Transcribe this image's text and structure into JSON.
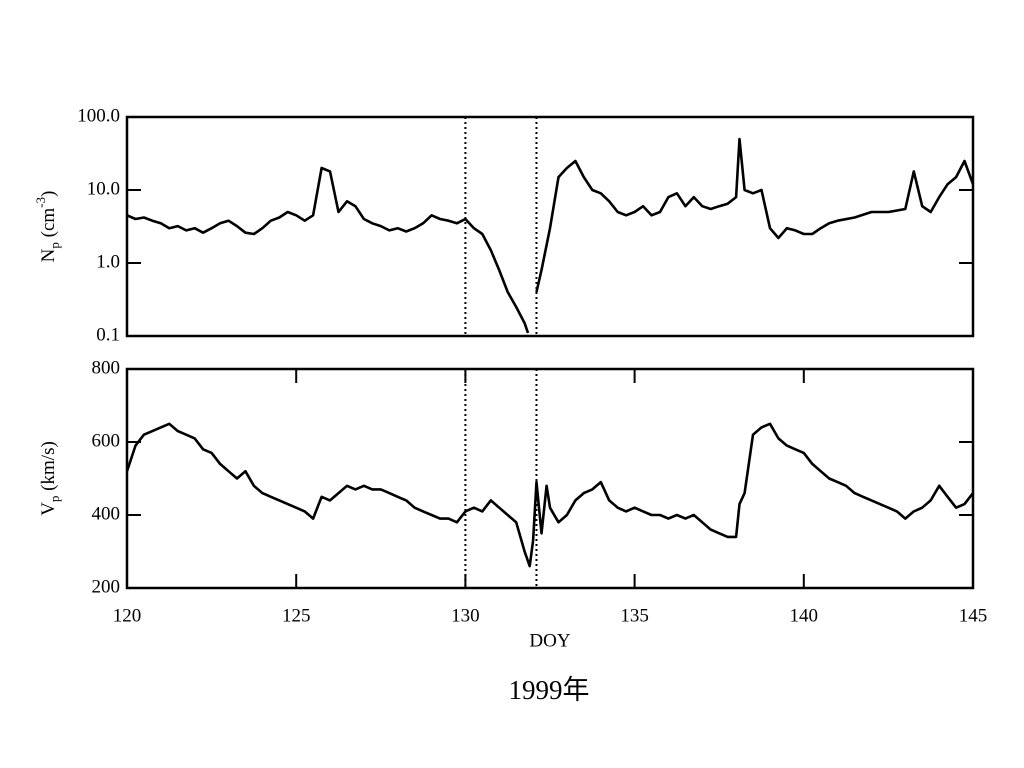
{
  "chart_data": [
    {
      "type": "line",
      "log_y": true,
      "color": "#000000",
      "ylabel": [
        {
          "text": "N"
        },
        {
          "text": "p",
          "script": "sub"
        },
        {
          "text": " (cm"
        },
        {
          "text": "-3",
          "script": "super"
        },
        {
          "text": ")"
        }
      ],
      "xlim": [
        120,
        145
      ],
      "ylim": [
        0.1,
        100
      ],
      "yticks": [
        0.1,
        {
          "value": 1,
          "label": "1.0"
        },
        {
          "value": 10,
          "label": "10.0"
        },
        {
          "value": 100,
          "label": "100.0"
        }
      ],
      "vlines": [
        130,
        132.1
      ],
      "x": [
        120,
        120.25,
        120.5,
        120.75,
        121,
        121.25,
        121.5,
        121.75,
        122,
        122.25,
        122.5,
        122.75,
        123,
        123.25,
        123.5,
        123.75,
        124,
        124.25,
        124.5,
        124.75,
        125,
        125.25,
        125.5,
        125.75,
        126,
        126.25,
        126.5,
        126.75,
        127,
        127.25,
        127.5,
        127.75,
        128,
        128.25,
        128.5,
        128.75,
        129,
        129.25,
        129.5,
        129.75,
        130,
        130.25,
        130.5,
        130.75,
        131,
        131.25,
        131.5,
        131.75,
        131.85,
        132,
        132.1,
        132.25,
        132.5,
        132.75,
        133,
        133.25,
        133.5,
        133.75,
        134,
        134.25,
        134.5,
        134.75,
        135,
        135.25,
        135.5,
        135.75,
        136,
        136.25,
        136.5,
        136.75,
        137,
        137.25,
        137.5,
        137.75,
        138,
        138.1,
        138.25,
        138.5,
        138.75,
        139,
        139.25,
        139.5,
        139.75,
        140,
        140.25,
        140.5,
        140.75,
        141,
        141.5,
        142,
        142.5,
        143,
        143.25,
        143.5,
        143.75,
        144,
        144.25,
        144.5,
        144.75,
        145
      ],
      "values": [
        4.5,
        4,
        4.2,
        3.8,
        3.5,
        3,
        3.2,
        2.8,
        3,
        2.6,
        3,
        3.5,
        3.8,
        3.2,
        2.6,
        2.5,
        3,
        3.8,
        4.2,
        5,
        4.5,
        3.8,
        4.5,
        20,
        18,
        5,
        7,
        6,
        4,
        3.5,
        3.2,
        2.8,
        3,
        2.7,
        3,
        3.5,
        4.5,
        4,
        3.8,
        3.5,
        4,
        3,
        2.5,
        1.5,
        0.8,
        0.4,
        0.25,
        0.15,
        0.11,
        null,
        0.4,
        0.8,
        3,
        15,
        20,
        25,
        15,
        10,
        9,
        7,
        5,
        4.5,
        5,
        6,
        4.5,
        5,
        8,
        9,
        6,
        8,
        6,
        5.5,
        6,
        6.5,
        8,
        50,
        10,
        9,
        10,
        3,
        2.2,
        3,
        2.8,
        2.5,
        2.5,
        3,
        3.5,
        3.8,
        4.2,
        5,
        5,
        5.5,
        18,
        6,
        5,
        8,
        12,
        15,
        25,
        12
      ]
    },
    {
      "type": "line",
      "log_y": false,
      "color": "#000000",
      "ylabel": [
        {
          "text": "V"
        },
        {
          "text": "p",
          "script": "sub"
        },
        {
          "text": " (km/s)"
        }
      ],
      "xlabel": "DOY",
      "xlim": [
        120,
        145
      ],
      "ylim": [
        200,
        800
      ],
      "xticks": [
        120,
        125,
        130,
        135,
        140,
        145
      ],
      "yticks": [
        200,
        400,
        600,
        800
      ],
      "vlines": [
        130,
        132.1
      ],
      "x": [
        120,
        120.25,
        120.5,
        120.75,
        121,
        121.25,
        121.5,
        121.75,
        122,
        122.25,
        122.5,
        122.75,
        123,
        123.25,
        123.5,
        123.75,
        124,
        124.25,
        124.5,
        124.75,
        125,
        125.25,
        125.5,
        125.75,
        126,
        126.25,
        126.5,
        126.75,
        127,
        127.25,
        127.5,
        127.75,
        128,
        128.25,
        128.5,
        128.75,
        129,
        129.25,
        129.5,
        129.75,
        130,
        130.25,
        130.5,
        130.75,
        131,
        131.25,
        131.5,
        131.75,
        131.9,
        132,
        132.1,
        132.25,
        132.4,
        132.5,
        132.75,
        133,
        133.25,
        133.5,
        133.75,
        134,
        134.25,
        134.5,
        134.75,
        135,
        135.25,
        135.5,
        135.75,
        136,
        136.25,
        136.5,
        136.75,
        137,
        137.25,
        137.5,
        137.75,
        138,
        138.1,
        138.25,
        138.5,
        138.75,
        139,
        139.25,
        139.5,
        139.75,
        140,
        140.25,
        140.5,
        140.75,
        141,
        141.25,
        141.5,
        141.75,
        142,
        142.25,
        142.5,
        142.75,
        143,
        143.25,
        143.5,
        143.75,
        144,
        144.25,
        144.5,
        144.75,
        145
      ],
      "values": [
        520,
        590,
        620,
        630,
        640,
        650,
        630,
        620,
        610,
        580,
        570,
        540,
        520,
        500,
        520,
        480,
        460,
        450,
        440,
        430,
        420,
        410,
        390,
        450,
        440,
        460,
        480,
        470,
        480,
        470,
        470,
        460,
        450,
        440,
        420,
        410,
        400,
        390,
        390,
        380,
        410,
        420,
        410,
        440,
        420,
        400,
        380,
        300,
        260,
        330,
        490,
        350,
        480,
        420,
        380,
        400,
        440,
        460,
        470,
        490,
        440,
        420,
        410,
        420,
        410,
        400,
        400,
        390,
        400,
        390,
        400,
        380,
        360,
        350,
        340,
        340,
        430,
        460,
        620,
        640,
        650,
        610,
        590,
        580,
        570,
        540,
        520,
        500,
        490,
        480,
        460,
        450,
        440,
        430,
        420,
        410,
        390,
        410,
        420,
        440,
        480,
        450,
        420,
        430,
        460
      ]
    }
  ],
  "caption": "1999年"
}
